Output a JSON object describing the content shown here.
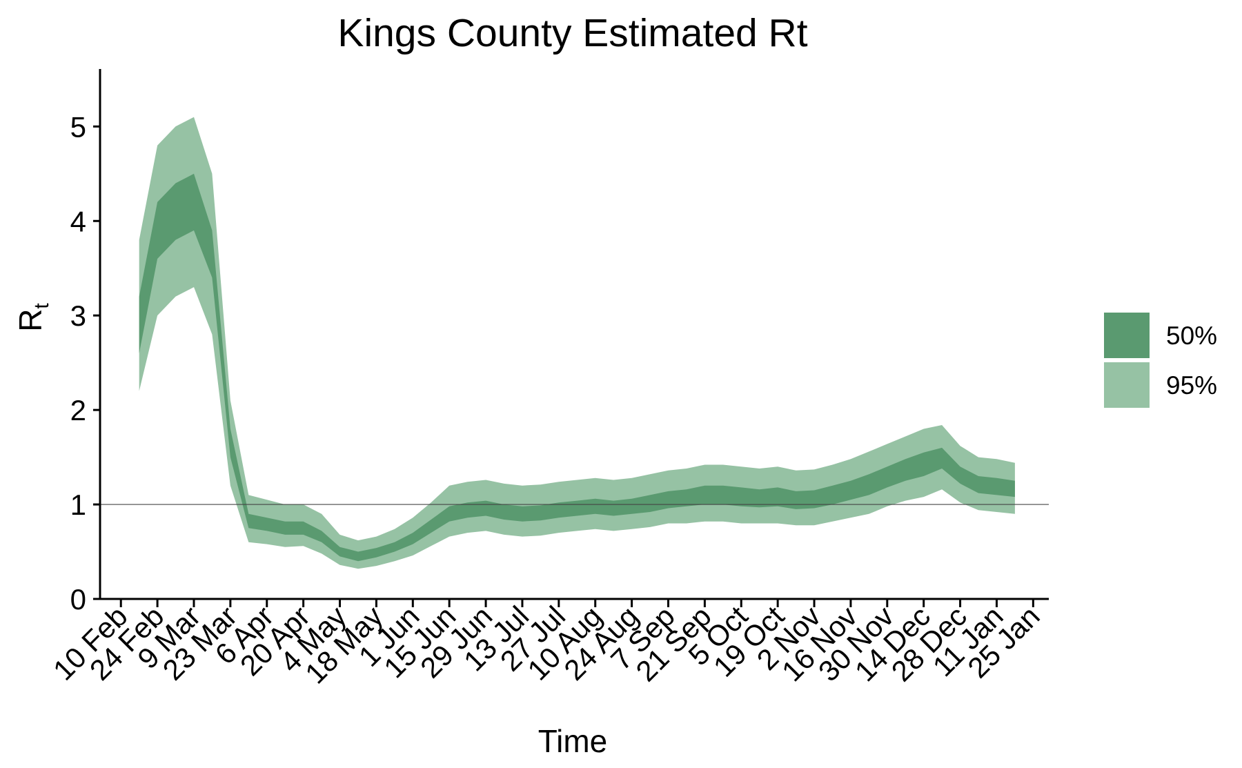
{
  "chart_data": {
    "type": "area",
    "title": "Kings County Estimated Rt",
    "xlabel": "Time",
    "ylabel": "R",
    "ylabel_subscript": "t",
    "ylim": [
      0,
      5.5
    ],
    "yticks": [
      0,
      1,
      2,
      3,
      4,
      5
    ],
    "xlim": [
      "2020-02-02",
      "2021-01-31"
    ],
    "x_tick_dates": [
      "2020-02-10",
      "2020-02-24",
      "2020-03-09",
      "2020-03-23",
      "2020-04-06",
      "2020-04-20",
      "2020-05-04",
      "2020-05-18",
      "2020-06-01",
      "2020-06-15",
      "2020-06-29",
      "2020-07-13",
      "2020-07-27",
      "2020-08-10",
      "2020-08-24",
      "2020-09-07",
      "2020-09-21",
      "2020-10-05",
      "2020-10-19",
      "2020-11-02",
      "2020-11-16",
      "2020-11-30",
      "2020-12-14",
      "2020-12-28",
      "2021-01-11",
      "2021-01-25"
    ],
    "x_tick_labels": [
      "10 Feb",
      "24 Feb",
      "9 Mar",
      "23 Mar",
      "6 Apr",
      "20 Apr",
      "4 May",
      "18 May",
      "1 Jun",
      "15 Jun",
      "29 Jun",
      "13 Jul",
      "27 Jul",
      "10 Aug",
      "24 Aug",
      "7 Sep",
      "21 Sep",
      "5 Oct",
      "19 Oct",
      "2 Nov",
      "16 Nov",
      "30 Nov",
      "14 Dec",
      "28 Dec",
      "11 Jan",
      "25 Jan"
    ],
    "reference_line": 1,
    "grid": false,
    "legend_position": "right",
    "series": [
      {
        "name": "50%",
        "color": "#5a9a70",
        "x": [
          "2020-02-17",
          "2020-02-24",
          "2020-03-02",
          "2020-03-09",
          "2020-03-16",
          "2020-03-23",
          "2020-03-30",
          "2020-04-06",
          "2020-04-13",
          "2020-04-20",
          "2020-04-27",
          "2020-05-04",
          "2020-05-11",
          "2020-05-18",
          "2020-05-25",
          "2020-06-01",
          "2020-06-08",
          "2020-06-15",
          "2020-06-22",
          "2020-06-29",
          "2020-07-06",
          "2020-07-13",
          "2020-07-20",
          "2020-07-27",
          "2020-08-03",
          "2020-08-10",
          "2020-08-17",
          "2020-08-24",
          "2020-08-31",
          "2020-09-07",
          "2020-09-14",
          "2020-09-21",
          "2020-09-28",
          "2020-10-05",
          "2020-10-12",
          "2020-10-19",
          "2020-10-26",
          "2020-11-02",
          "2020-11-09",
          "2020-11-16",
          "2020-11-23",
          "2020-11-30",
          "2020-12-07",
          "2020-12-14",
          "2020-12-21",
          "2020-12-28",
          "2021-01-04",
          "2021-01-11",
          "2021-01-18"
        ],
        "lower": [
          2.6,
          3.6,
          3.8,
          3.9,
          3.4,
          1.5,
          0.75,
          0.72,
          0.68,
          0.68,
          0.6,
          0.45,
          0.4,
          0.44,
          0.5,
          0.58,
          0.7,
          0.82,
          0.86,
          0.88,
          0.84,
          0.82,
          0.83,
          0.86,
          0.88,
          0.9,
          0.88,
          0.9,
          0.92,
          0.96,
          0.98,
          1.0,
          1.0,
          0.98,
          0.97,
          0.98,
          0.95,
          0.96,
          1.0,
          1.05,
          1.1,
          1.18,
          1.25,
          1.3,
          1.38,
          1.22,
          1.12,
          1.1,
          1.08
        ],
        "upper": [
          3.2,
          4.2,
          4.4,
          4.5,
          3.9,
          1.8,
          0.9,
          0.86,
          0.82,
          0.82,
          0.72,
          0.55,
          0.5,
          0.54,
          0.6,
          0.7,
          0.84,
          0.98,
          1.02,
          1.04,
          1.0,
          0.98,
          0.99,
          1.02,
          1.04,
          1.06,
          1.04,
          1.06,
          1.1,
          1.14,
          1.16,
          1.2,
          1.2,
          1.18,
          1.16,
          1.18,
          1.14,
          1.15,
          1.2,
          1.25,
          1.32,
          1.4,
          1.48,
          1.55,
          1.6,
          1.4,
          1.3,
          1.28,
          1.25
        ]
      },
      {
        "name": "95%",
        "color": "#96c2a4",
        "x": [
          "2020-02-17",
          "2020-02-24",
          "2020-03-02",
          "2020-03-09",
          "2020-03-16",
          "2020-03-23",
          "2020-03-30",
          "2020-04-06",
          "2020-04-13",
          "2020-04-20",
          "2020-04-27",
          "2020-05-04",
          "2020-05-11",
          "2020-05-18",
          "2020-05-25",
          "2020-06-01",
          "2020-06-08",
          "2020-06-15",
          "2020-06-22",
          "2020-06-29",
          "2020-07-06",
          "2020-07-13",
          "2020-07-20",
          "2020-07-27",
          "2020-08-03",
          "2020-08-10",
          "2020-08-17",
          "2020-08-24",
          "2020-08-31",
          "2020-09-07",
          "2020-09-14",
          "2020-09-21",
          "2020-09-28",
          "2020-10-05",
          "2020-10-12",
          "2020-10-19",
          "2020-10-26",
          "2020-11-02",
          "2020-11-09",
          "2020-11-16",
          "2020-11-23",
          "2020-11-30",
          "2020-12-07",
          "2020-12-14",
          "2020-12-21",
          "2020-12-28",
          "2021-01-04",
          "2021-01-11",
          "2021-01-18"
        ],
        "lower": [
          2.2,
          3.0,
          3.2,
          3.3,
          2.8,
          1.2,
          0.6,
          0.58,
          0.55,
          0.56,
          0.48,
          0.36,
          0.32,
          0.35,
          0.4,
          0.46,
          0.56,
          0.66,
          0.7,
          0.72,
          0.68,
          0.66,
          0.67,
          0.7,
          0.72,
          0.74,
          0.72,
          0.74,
          0.76,
          0.8,
          0.8,
          0.82,
          0.82,
          0.8,
          0.8,
          0.8,
          0.78,
          0.78,
          0.82,
          0.86,
          0.9,
          0.98,
          1.04,
          1.08,
          1.16,
          1.02,
          0.94,
          0.92,
          0.9
        ],
        "upper": [
          3.8,
          4.8,
          5.0,
          5.1,
          4.5,
          2.1,
          1.1,
          1.05,
          1.0,
          1.0,
          0.9,
          0.68,
          0.62,
          0.66,
          0.74,
          0.86,
          1.02,
          1.2,
          1.24,
          1.26,
          1.22,
          1.2,
          1.21,
          1.24,
          1.26,
          1.28,
          1.26,
          1.28,
          1.32,
          1.36,
          1.38,
          1.42,
          1.42,
          1.4,
          1.38,
          1.4,
          1.36,
          1.37,
          1.42,
          1.48,
          1.56,
          1.64,
          1.72,
          1.8,
          1.84,
          1.62,
          1.5,
          1.48,
          1.44
        ]
      }
    ]
  }
}
